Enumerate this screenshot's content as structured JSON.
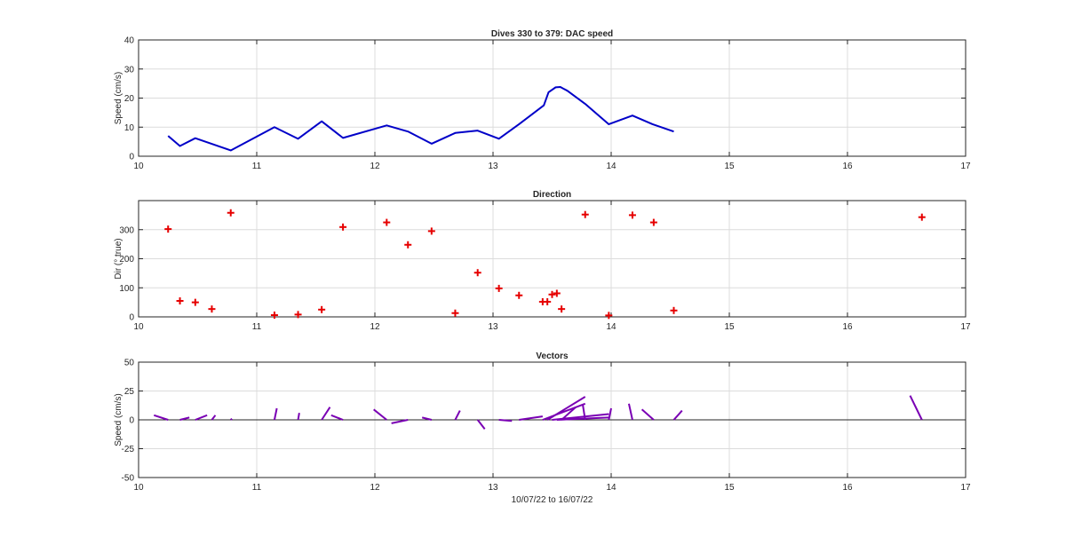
{
  "chart_data": [
    {
      "type": "line",
      "title": "Dives 330 to 379: DAC speed",
      "xlabel": "",
      "ylabel": "Speed (cm/s)",
      "xlim": [
        10,
        17
      ],
      "ylim": [
        0,
        40
      ],
      "xticks": [
        10,
        11,
        12,
        13,
        14,
        15,
        16,
        17
      ],
      "yticks": [
        0,
        10,
        20,
        30,
        40
      ],
      "grid": true,
      "color": "#0000c8",
      "x": [
        10.25,
        10.35,
        10.48,
        10.78,
        11.15,
        11.35,
        11.55,
        11.73,
        12.1,
        12.28,
        12.48,
        12.68,
        12.87,
        13.05,
        13.22,
        13.43,
        13.47,
        13.53,
        13.57,
        13.63,
        13.78,
        13.98,
        14.18,
        14.35,
        14.53
      ],
      "y": [
        7,
        3.5,
        6.2,
        2,
        10,
        6,
        12,
        6.3,
        10.6,
        8.5,
        4.3,
        8,
        8.8,
        6,
        11,
        17.5,
        22,
        23.7,
        23.8,
        22.5,
        18,
        11,
        14,
        11,
        8.5
      ]
    },
    {
      "type": "scatter",
      "title": "Direction",
      "xlabel": "",
      "ylabel": "Dir (° true)",
      "xlim": [
        10,
        17
      ],
      "ylim": [
        0,
        400
      ],
      "xticks": [
        10,
        11,
        12,
        13,
        14,
        15,
        16,
        17
      ],
      "yticks": [
        0,
        100,
        200,
        300
      ],
      "grid": true,
      "marker": "+",
      "color": "#e60000",
      "x": [
        10.25,
        10.35,
        10.48,
        10.62,
        10.78,
        11.15,
        11.35,
        11.55,
        11.73,
        12.1,
        12.28,
        12.48,
        12.68,
        12.87,
        13.05,
        13.22,
        13.42,
        13.46,
        13.5,
        13.54,
        13.58,
        13.78,
        13.98,
        14.18,
        14.36,
        14.53,
        16.63
      ],
      "y": [
        302,
        55,
        50,
        27,
        358,
        6,
        8,
        25,
        309,
        325,
        248,
        295,
        13,
        152,
        98,
        74,
        52,
        52,
        77,
        81,
        27,
        352,
        5,
        350,
        325,
        22,
        343
      ]
    },
    {
      "type": "vector",
      "title": "Vectors",
      "xlabel": "10/07/22 to 16/07/22",
      "ylabel": "Speed (cm/s)",
      "xlim": [
        10,
        17
      ],
      "ylim": [
        -50,
        50
      ],
      "xticks": [
        10,
        11,
        12,
        13,
        14,
        15,
        16,
        17
      ],
      "yticks": [
        50,
        25,
        0,
        -25,
        -50
      ],
      "ytick_labels": [
        "50",
        "25",
        "0",
        "-25",
        "-50"
      ],
      "grid": true,
      "color": "#7a00b4",
      "segments": [
        {
          "x0": 10.25,
          "y0": 0,
          "x1": 10.13,
          "y1": 4
        },
        {
          "x0": 10.35,
          "y0": 0,
          "x1": 10.43,
          "y1": 2
        },
        {
          "x0": 10.48,
          "y0": 0,
          "x1": 10.58,
          "y1": 4
        },
        {
          "x0": 10.62,
          "y0": 0,
          "x1": 10.65,
          "y1": 4
        },
        {
          "x0": 10.78,
          "y0": 0,
          "x1": 10.79,
          "y1": 1
        },
        {
          "x0": 11.15,
          "y0": 0,
          "x1": 11.17,
          "y1": 10
        },
        {
          "x0": 11.35,
          "y0": 0,
          "x1": 11.36,
          "y1": 6
        },
        {
          "x0": 11.55,
          "y0": 0,
          "x1": 11.62,
          "y1": 11
        },
        {
          "x0": 11.73,
          "y0": 0,
          "x1": 11.63,
          "y1": 4
        },
        {
          "x0": 12.1,
          "y0": 0,
          "x1": 11.99,
          "y1": 9
        },
        {
          "x0": 12.28,
          "y0": 0,
          "x1": 12.14,
          "y1": -3
        },
        {
          "x0": 12.48,
          "y0": 0,
          "x1": 12.4,
          "y1": 2
        },
        {
          "x0": 12.68,
          "y0": 0,
          "x1": 12.72,
          "y1": 8
        },
        {
          "x0": 12.87,
          "y0": 0,
          "x1": 12.93,
          "y1": -8
        },
        {
          "x0": 13.05,
          "y0": 0,
          "x1": 13.16,
          "y1": -1
        },
        {
          "x0": 13.22,
          "y0": 0,
          "x1": 13.42,
          "y1": 3
        },
        {
          "x0": 13.42,
          "y0": 0,
          "x1": 13.78,
          "y1": 14
        },
        {
          "x0": 13.46,
          "y0": 0,
          "x1": 13.78,
          "y1": 20
        },
        {
          "x0": 13.5,
          "y0": 0,
          "x1": 13.98,
          "y1": 5
        },
        {
          "x0": 13.54,
          "y0": 0,
          "x1": 13.98,
          "y1": 2
        },
        {
          "x0": 13.58,
          "y0": 0,
          "x1": 13.7,
          "y1": 11
        },
        {
          "x0": 13.78,
          "y0": 0,
          "x1": 13.76,
          "y1": 13
        },
        {
          "x0": 13.98,
          "y0": 0,
          "x1": 14.0,
          "y1": 10
        },
        {
          "x0": 14.18,
          "y0": 0,
          "x1": 14.15,
          "y1": 14
        },
        {
          "x0": 14.36,
          "y0": 0,
          "x1": 14.26,
          "y1": 9
        },
        {
          "x0": 14.53,
          "y0": 0,
          "x1": 14.6,
          "y1": 8
        },
        {
          "x0": 16.63,
          "y0": 0,
          "x1": 16.53,
          "y1": 21
        }
      ]
    }
  ]
}
